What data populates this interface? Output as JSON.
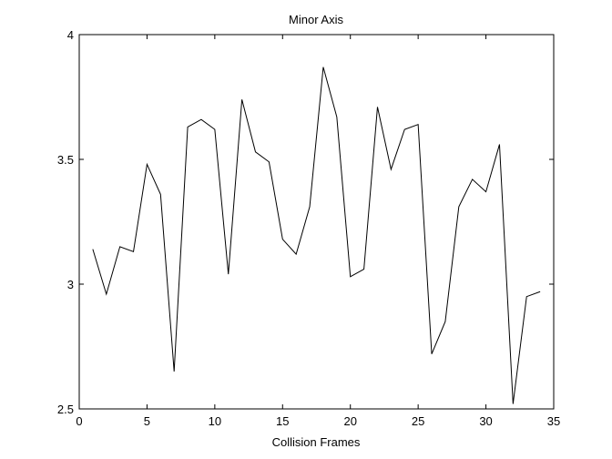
{
  "chart_data": {
    "type": "line",
    "title": "Minor Axis",
    "xlabel": "Collision Frames",
    "ylabel": "",
    "xlim": [
      0,
      35
    ],
    "ylim": [
      2.5,
      4
    ],
    "xticks": [
      0,
      5,
      10,
      15,
      20,
      25,
      30,
      35
    ],
    "yticks": [
      2.5,
      3,
      3.5,
      4
    ],
    "xtick_labels": [
      "0",
      "5",
      "10",
      "15",
      "20",
      "25",
      "30",
      "35"
    ],
    "ytick_labels": [
      "2.5",
      "3",
      "3.5",
      "4"
    ],
    "grid": false,
    "line_color": "#000000",
    "series": [
      {
        "x": [
          1,
          2,
          3,
          4,
          5,
          6,
          7,
          8,
          9,
          10,
          11,
          12,
          13,
          14,
          15,
          16,
          17,
          18,
          19,
          20,
          21,
          22,
          23,
          24,
          25,
          26,
          27,
          28,
          29,
          30,
          31,
          32,
          33,
          34
        ],
        "values": [
          3.14,
          2.96,
          3.15,
          3.13,
          3.48,
          3.36,
          2.65,
          3.63,
          3.66,
          3.62,
          3.04,
          3.74,
          3.53,
          3.49,
          3.18,
          3.12,
          3.31,
          3.87,
          3.67,
          3.03,
          3.06,
          3.71,
          3.46,
          3.62,
          3.64,
          2.72,
          2.85,
          3.31,
          3.42,
          3.37,
          3.56,
          2.52,
          2.95,
          2.97
        ]
      }
    ]
  }
}
